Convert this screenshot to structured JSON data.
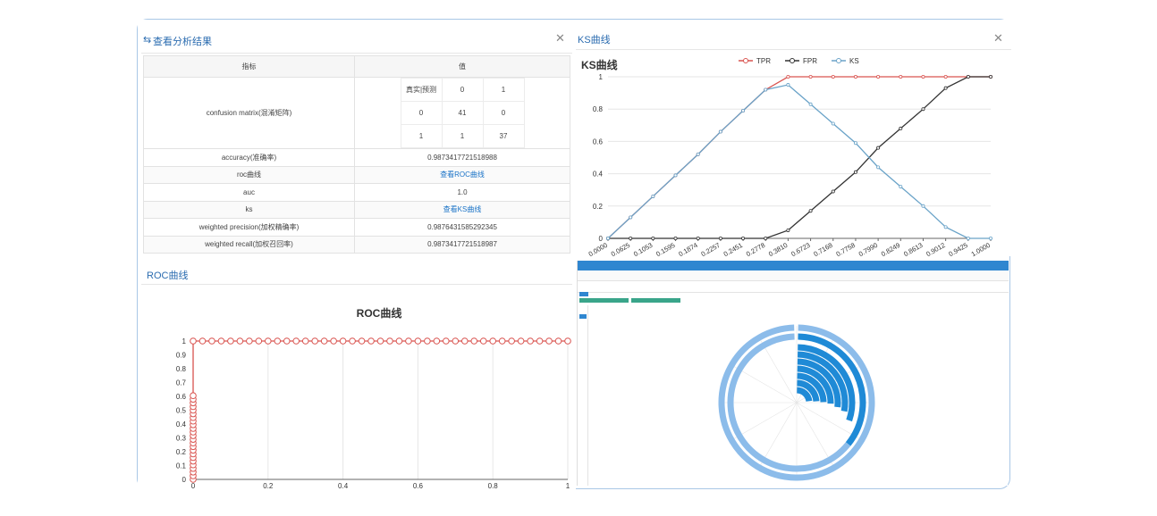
{
  "results_panel": {
    "title": "查看分析结果",
    "header": {
      "metric": "指标",
      "value": "值"
    },
    "confusion_matrix": {
      "label": "confusion matrix(混淆矩阵)",
      "corner": "真实|预测",
      "cols": [
        "0",
        "1"
      ],
      "rows": [
        {
          "label": "0",
          "cells": [
            "41",
            "0"
          ]
        },
        {
          "label": "1",
          "cells": [
            "1",
            "37"
          ]
        }
      ]
    },
    "rows": [
      {
        "metric": "accuracy(准确率)",
        "value": "0.9873417721518988",
        "link": false
      },
      {
        "metric": "roc曲线",
        "value": "查看ROC曲线",
        "link": true
      },
      {
        "metric": "auc",
        "value": "1.0",
        "link": false
      },
      {
        "metric": "ks",
        "value": "查看KS曲线",
        "link": true
      },
      {
        "metric": "weighted precision(加权精确率)",
        "value": "0.9876431585292345",
        "link": false
      },
      {
        "metric": "weighted recall(加权召回率)",
        "value": "0.9873417721518987",
        "link": false
      }
    ]
  },
  "ks_panel": {
    "title": "KS曲线"
  },
  "roc_panel": {
    "title": "ROC曲线"
  },
  "colors": {
    "tpr": "#d9534f",
    "fpr": "#333333",
    "ks": "#6aa3c8",
    "brand": "#2f86d0"
  },
  "chart_data": [
    {
      "type": "line",
      "title": "KS曲线",
      "categories": [
        "0.0000",
        "0.0625",
        "0.1053",
        "0.1595",
        "0.1874",
        "0.2257",
        "0.2451",
        "0.2778",
        "0.3810",
        "0.6723",
        "0.7168",
        "0.7758",
        "0.7990",
        "0.8249",
        "0.8613",
        "0.9012",
        "0.9425",
        "1.0000"
      ],
      "ylim": [
        0,
        1
      ],
      "yticks": [
        0,
        0.2,
        0.4,
        0.6,
        0.8,
        1
      ],
      "legend": "top",
      "grid": true,
      "series": [
        {
          "name": "TPR",
          "color": "#d9534f",
          "values": [
            0,
            0.13,
            0.26,
            0.39,
            0.52,
            0.66,
            0.79,
            0.92,
            1,
            1,
            1,
            1,
            1,
            1,
            1,
            1,
            1,
            1
          ]
        },
        {
          "name": "FPR",
          "color": "#333333",
          "values": [
            0,
            0,
            0,
            0,
            0,
            0,
            0,
            0,
            0.05,
            0.17,
            0.29,
            0.41,
            0.56,
            0.68,
            0.8,
            0.93,
            1,
            1
          ]
        },
        {
          "name": "KS",
          "color": "#6aa3c8",
          "values": [
            0,
            0.13,
            0.26,
            0.39,
            0.52,
            0.66,
            0.79,
            0.92,
            0.95,
            0.83,
            0.71,
            0.59,
            0.44,
            0.32,
            0.2,
            0.07,
            0,
            0
          ]
        }
      ]
    },
    {
      "type": "line",
      "title": "ROC曲线",
      "xlim": [
        0,
        1
      ],
      "ylim": [
        0,
        1
      ],
      "xticks": [
        0,
        0.2,
        0.4,
        0.6,
        0.8,
        1
      ],
      "yticks": [
        0,
        0.1,
        0.2,
        0.3,
        0.4,
        0.5,
        0.6,
        0.7,
        0.8,
        0.9,
        1
      ],
      "grid": true,
      "series": [
        {
          "color": "#d9534f",
          "x": [
            0,
            0,
            0,
            0,
            0,
            0,
            0,
            0,
            0,
            0,
            0,
            0,
            0,
            0,
            0,
            0,
            0,
            0,
            0,
            0,
            0,
            0,
            0,
            0,
            0,
            0.025,
            0.05,
            0.075,
            0.1,
            0.125,
            0.15,
            0.175,
            0.2,
            0.225,
            0.25,
            0.275,
            0.3,
            0.325,
            0.35,
            0.375,
            0.4,
            0.425,
            0.45,
            0.475,
            0.5,
            0.525,
            0.55,
            0.575,
            0.6,
            0.625,
            0.65,
            0.675,
            0.7,
            0.725,
            0.75,
            0.775,
            0.8,
            0.825,
            0.85,
            0.875,
            0.9,
            0.925,
            0.95,
            0.975,
            1
          ],
          "y": [
            0,
            0.026,
            0.053,
            0.079,
            0.105,
            0.132,
            0.158,
            0.184,
            0.211,
            0.237,
            0.263,
            0.289,
            0.316,
            0.342,
            0.368,
            0.395,
            0.421,
            0.447,
            0.474,
            0.5,
            0.526,
            0.553,
            0.579,
            0.605,
            1,
            1,
            1,
            1,
            1,
            1,
            1,
            1,
            1,
            1,
            1,
            1,
            1,
            1,
            1,
            1,
            1,
            1,
            1,
            1,
            1,
            1,
            1,
            1,
            1,
            1,
            1,
            1,
            1,
            1,
            1,
            1,
            1,
            1,
            1,
            1,
            1,
            1,
            1,
            1,
            1
          ]
        }
      ]
    }
  ]
}
